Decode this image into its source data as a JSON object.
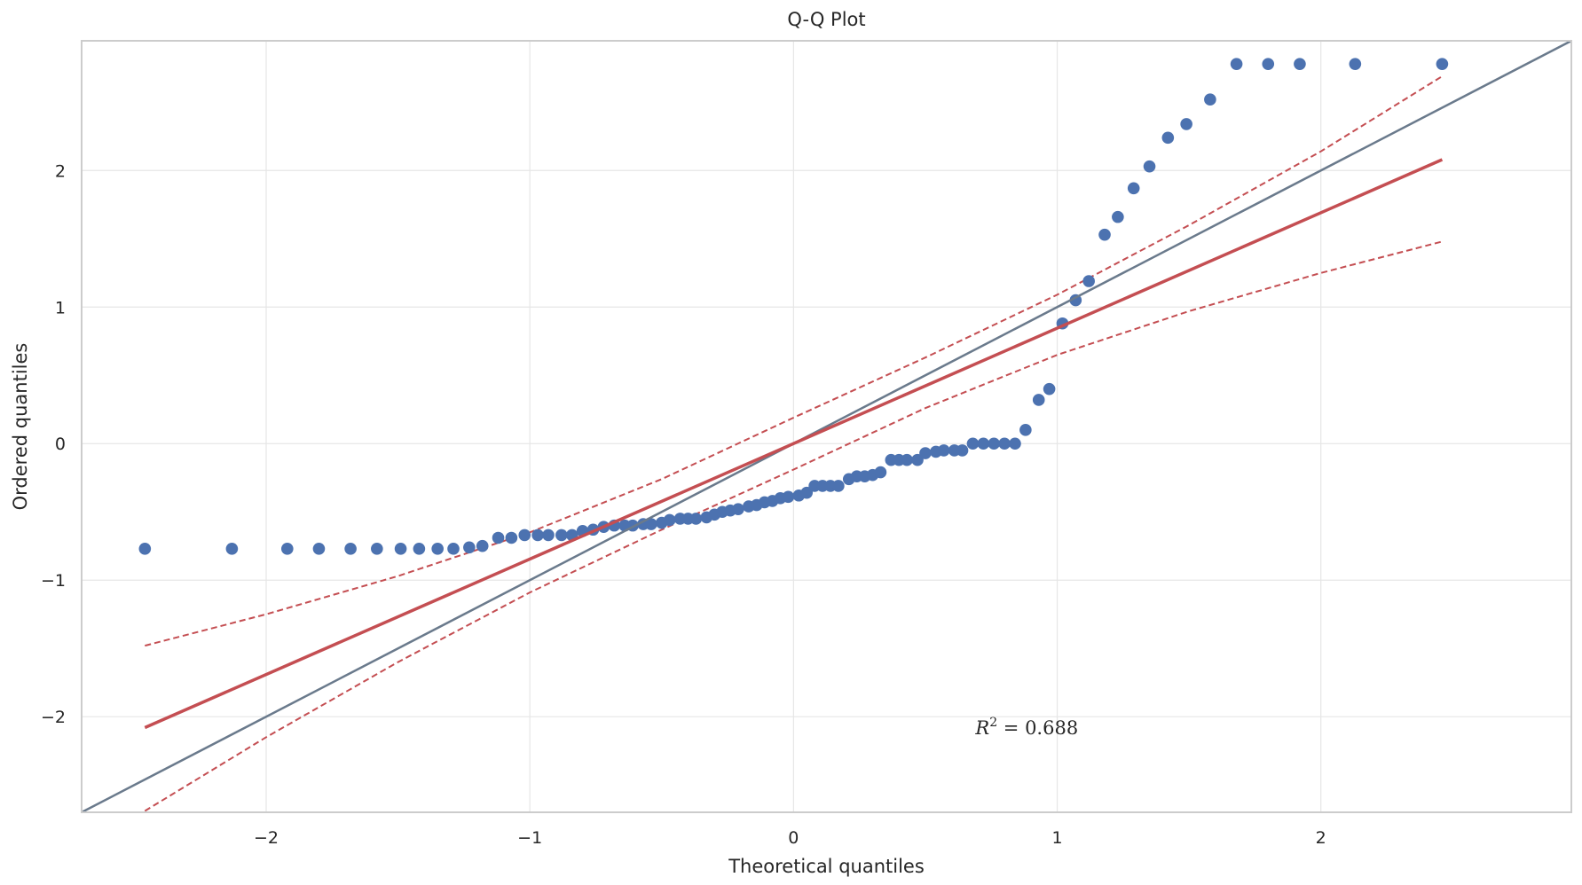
{
  "chart_data": {
    "type": "scatter",
    "title": "Q-Q Plot",
    "xlabel": "Theoretical quantiles",
    "ylabel": "Ordered quantiles",
    "xlim": [
      -2.7,
      2.95
    ],
    "ylim": [
      -2.7,
      2.95
    ],
    "xticks": [
      -2,
      -1,
      0,
      1,
      2
    ],
    "yticks": [
      -2,
      -1,
      0,
      1,
      2
    ],
    "xtick_labels": [
      "−2",
      "−1",
      "0",
      "1",
      "2"
    ],
    "ytick_labels": [
      "−2",
      "−1",
      "0",
      "1",
      "2"
    ],
    "grid": true,
    "annotation": {
      "symbol": "R",
      "superscript": "2",
      "text": " = 0.688",
      "x": 0.69,
      "y": -2.13
    },
    "series": [
      {
        "kind": "points",
        "color": "#4c72b0",
        "x": [
          -2.46,
          -2.13,
          -1.92,
          -1.8,
          -1.68,
          -1.58,
          -1.49,
          -1.42,
          -1.35,
          -1.29,
          -1.23,
          -1.18,
          -1.12,
          -1.07,
          -1.02,
          -0.97,
          -0.93,
          -0.88,
          -0.84,
          -0.8,
          -0.76,
          -0.72,
          -0.68,
          -0.64,
          -0.61,
          -0.57,
          -0.54,
          -0.5,
          -0.47,
          -0.43,
          -0.4,
          -0.37,
          -0.33,
          -0.3,
          -0.27,
          -0.24,
          -0.21,
          -0.17,
          -0.14,
          -0.11,
          -0.08,
          -0.05,
          -0.02,
          0.02,
          0.05,
          0.08,
          0.11,
          0.14,
          0.17,
          0.21,
          0.24,
          0.27,
          0.3,
          0.33,
          0.37,
          0.4,
          0.43,
          0.47,
          0.5,
          0.54,
          0.57,
          0.61,
          0.64,
          0.68,
          0.72,
          0.76,
          0.8,
          0.84,
          0.88,
          0.93,
          0.97,
          1.02,
          1.07,
          1.12,
          1.18,
          1.23,
          1.29,
          1.35,
          1.42,
          1.49,
          1.58,
          1.68,
          1.8,
          1.92,
          2.13,
          2.46
        ],
        "y": [
          -0.77,
          -0.77,
          -0.77,
          -0.77,
          -0.77,
          -0.77,
          -0.77,
          -0.77,
          -0.77,
          -0.77,
          -0.76,
          -0.75,
          -0.69,
          -0.69,
          -0.67,
          -0.67,
          -0.67,
          -0.67,
          -0.67,
          -0.64,
          -0.63,
          -0.61,
          -0.6,
          -0.6,
          -0.6,
          -0.59,
          -0.59,
          -0.58,
          -0.56,
          -0.55,
          -0.55,
          -0.55,
          -0.54,
          -0.52,
          -0.5,
          -0.49,
          -0.48,
          -0.46,
          -0.45,
          -0.43,
          -0.42,
          -0.4,
          -0.39,
          -0.38,
          -0.36,
          -0.31,
          -0.31,
          -0.31,
          -0.31,
          -0.26,
          -0.24,
          -0.24,
          -0.23,
          -0.21,
          -0.12,
          -0.12,
          -0.12,
          -0.12,
          -0.07,
          -0.06,
          -0.05,
          -0.05,
          -0.05,
          0.0,
          0.0,
          0.0,
          0.0,
          0.0,
          0.1,
          0.32,
          0.4,
          0.88,
          1.05,
          1.19,
          1.53,
          1.66,
          1.87,
          2.03,
          2.24,
          2.34,
          2.52,
          2.78,
          2.78,
          2.78,
          2.78,
          2.78
        ]
      },
      {
        "kind": "reference-line",
        "color": "#6a7a8c",
        "x": [
          -2.7,
          2.95
        ],
        "y": [
          -2.7,
          2.95
        ]
      },
      {
        "kind": "fit-line",
        "color": "#c44e52",
        "x": [
          -2.46,
          2.46
        ],
        "y": [
          -2.08,
          2.08
        ]
      },
      {
        "kind": "confidence-upper",
        "color": "#c44e52",
        "x": [
          -2.46,
          -2.0,
          -1.5,
          -1.0,
          -0.5,
          0.0,
          0.5,
          1.0,
          1.5,
          2.0,
          2.46
        ],
        "y": [
          -1.48,
          -1.25,
          -0.97,
          -0.65,
          -0.26,
          0.19,
          0.63,
          1.09,
          1.6,
          2.14,
          2.69
        ]
      },
      {
        "kind": "confidence-lower",
        "color": "#c44e52",
        "x": [
          -2.46,
          -2.0,
          -1.5,
          -1.0,
          -0.5,
          0.0,
          0.5,
          1.0,
          1.5,
          2.0,
          2.46
        ],
        "y": [
          -2.69,
          -2.15,
          -1.6,
          -1.09,
          -0.63,
          -0.19,
          0.26,
          0.65,
          0.97,
          1.25,
          1.48
        ]
      }
    ]
  }
}
